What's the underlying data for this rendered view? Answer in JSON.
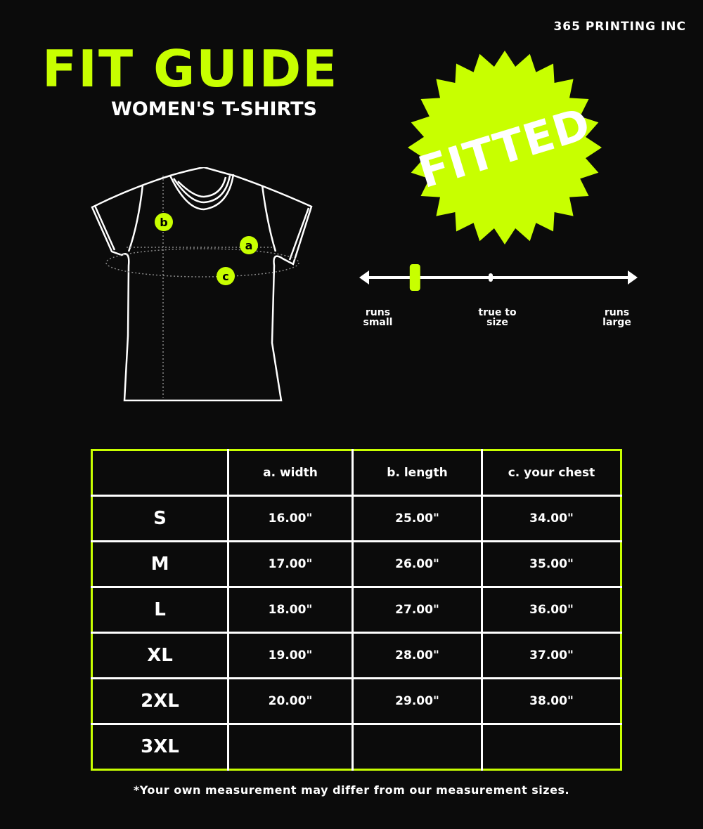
{
  "brand": "365 PRINTING INC",
  "title": "FIT GUIDE",
  "subtitle": "WOMEN'S T-SHIRTS",
  "badge": {
    "text": "FITTED",
    "color": "#c8ff00"
  },
  "diagram": {
    "markers": [
      "a",
      "b",
      "c"
    ]
  },
  "fit_scale": {
    "labels": [
      "runs small",
      "true to size",
      "runs large"
    ],
    "value_position": 0.19
  },
  "table": {
    "headers": [
      "",
      "a. width",
      "b. length",
      "c. your chest"
    ],
    "rows": [
      [
        "S",
        "16.00\"",
        "25.00\"",
        "34.00\""
      ],
      [
        "M",
        "17.00\"",
        "26.00\"",
        "35.00\""
      ],
      [
        "L",
        "18.00\"",
        "27.00\"",
        "36.00\""
      ],
      [
        "XL",
        "19.00\"",
        "28.00\"",
        "37.00\""
      ],
      [
        "2XL",
        "20.00\"",
        "29.00\"",
        "38.00\""
      ],
      [
        "3XL",
        "",
        "",
        ""
      ]
    ]
  },
  "footnote": "*Your own measurement may differ from our measurement sizes.",
  "colors": {
    "accent": "#c8ff00",
    "background": "#0b0b0b"
  }
}
